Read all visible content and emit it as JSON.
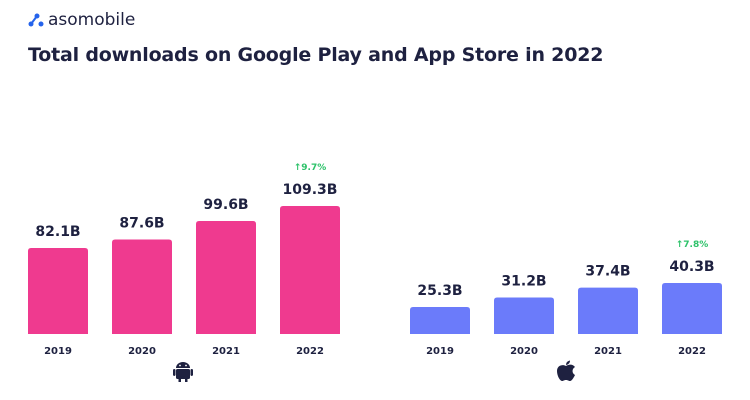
{
  "brand": "asomobile",
  "chart_data": [
    {
      "type": "bar",
      "title": "Total downloads on Google Play and App Store in 2022",
      "platform": "Google Play",
      "platform_icon": "android-icon",
      "color": "#ef3a8f",
      "categories": [
        "2019",
        "2020",
        "2021",
        "2022"
      ],
      "values": [
        82.1,
        87.6,
        99.6,
        109.3
      ],
      "labels": [
        "82.1B",
        "87.6B",
        "99.6B",
        "109.3B"
      ],
      "growth_label": "↑9.7%"
    },
    {
      "type": "bar",
      "platform": "App Store",
      "platform_icon": "apple-icon",
      "color": "#6b7bfa",
      "categories": [
        "2019",
        "2020",
        "2021",
        "2022"
      ],
      "values": [
        25.3,
        31.2,
        37.4,
        40.3
      ],
      "labels": [
        "25.3B",
        "31.2B",
        "37.4B",
        "40.3B"
      ],
      "growth_label": "↑7.8%"
    }
  ]
}
